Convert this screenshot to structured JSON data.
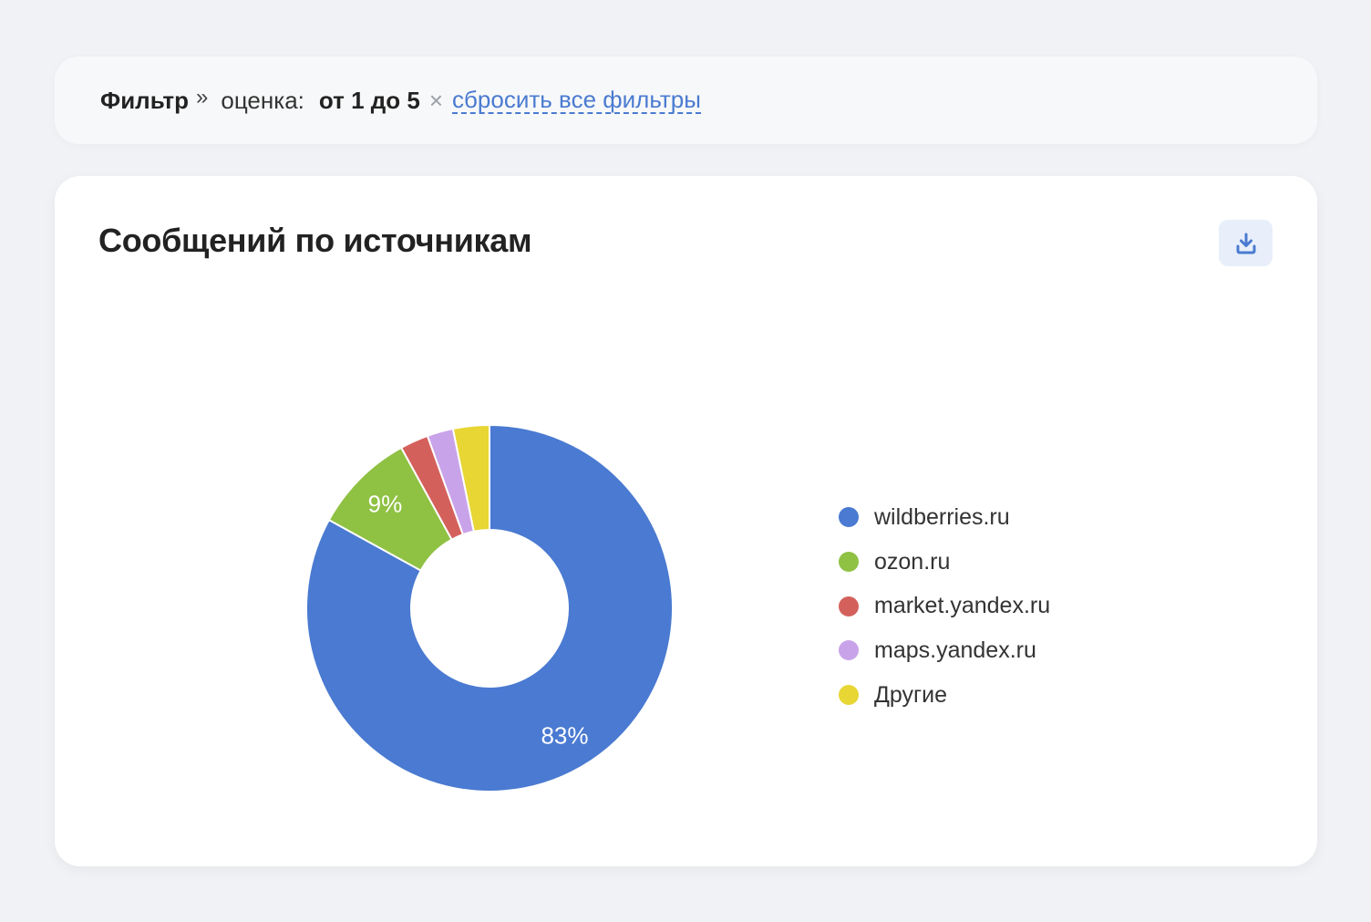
{
  "filter": {
    "label": "Фильтр",
    "arrow": "»",
    "key": "оценка:",
    "value": "от 1 до 5",
    "remove_symbol": "×",
    "reset_label": "сбросить все фильтры"
  },
  "card": {
    "title": "Сообщений по источникам",
    "download_icon": "download-icon"
  },
  "chart_data": {
    "type": "pie",
    "donut": true,
    "title": "Сообщений по источникам",
    "categories": [
      "wildberries.ru",
      "ozon.ru",
      "market.yandex.ru",
      "maps.yandex.ru",
      "Другие"
    ],
    "values": [
      83,
      9,
      2.5,
      2.3,
      3.2
    ],
    "data_labels": [
      "83%",
      "9%",
      "",
      "",
      ""
    ],
    "colors": [
      "#4a7ad1",
      "#8fc143",
      "#d4605c",
      "#c9a3ea",
      "#e8d635"
    ],
    "legend_position": "right"
  }
}
